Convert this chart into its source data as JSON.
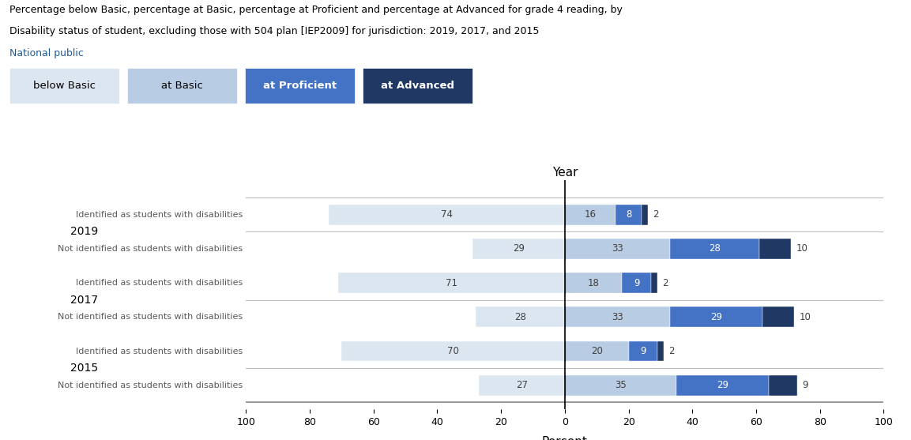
{
  "title_lines": [
    "Percentage below Basic, percentage at Basic, percentage at Proficient and percentage at Advanced for grade 4 reading, by",
    "Disability status of student, excluding those with 504 plan [IEP2009] for jurisdiction: 2019, 2017, and 2015",
    "National public"
  ],
  "title_color": "#000000",
  "national_public_color": "#1f5c99",
  "legend_labels": [
    "below Basic",
    "at Basic",
    "at Proficient",
    "at Advanced"
  ],
  "legend_colors": [
    "#dce6f1",
    "#b8cce4",
    "#4472c4",
    "#1f3864"
  ],
  "legend_text_colors": [
    "#000000",
    "#000000",
    "#ffffff",
    "#ffffff"
  ],
  "year_labels": [
    "2019",
    "2017",
    "2015"
  ],
  "row_labels": [
    "Identified as students with disabilities",
    "Not identified as students with disabilities",
    "Identified as students with disabilities",
    "Not identified as students with disabilities",
    "Identified as students with disabilities",
    "Not identified as students with disabilities"
  ],
  "rows": [
    {
      "below_basic": 74,
      "at_proficient": 16,
      "at_advanced_mid": 8,
      "at_advanced_out": 2
    },
    {
      "below_basic": 29,
      "at_proficient": 33,
      "at_advanced_mid": 28,
      "at_advanced_out": 10
    },
    {
      "below_basic": 71,
      "at_proficient": 18,
      "at_advanced_mid": 9,
      "at_advanced_out": 2
    },
    {
      "below_basic": 28,
      "at_proficient": 33,
      "at_advanced_mid": 29,
      "at_advanced_out": 10
    },
    {
      "below_basic": 70,
      "at_proficient": 20,
      "at_advanced_mid": 9,
      "at_advanced_out": 2
    },
    {
      "below_basic": 27,
      "at_proficient": 35,
      "at_advanced_mid": 29,
      "at_advanced_out": 9
    }
  ],
  "colors": {
    "below_basic": "#dce6f1",
    "at_proficient": "#b8cce4",
    "at_advanced_mid": "#4472c4",
    "at_advanced_out": "#1f3864"
  },
  "xticks": [
    -100,
    -80,
    -60,
    -40,
    -20,
    0,
    20,
    40,
    60,
    80,
    100
  ],
  "xticklabels": [
    "100",
    "80",
    "60",
    "40",
    "20",
    "0",
    "20",
    "40",
    "60",
    "80",
    "100"
  ],
  "xlabel": "Percent",
  "ylabel": "Year",
  "bar_height": 0.6,
  "background_color": "#ffffff",
  "grid_color": "#c0c0c0",
  "label_color": "#595959",
  "year_label_color": "#000000",
  "inner_label_dark_color": "#404040",
  "inner_label_light_color": "#ffffff"
}
